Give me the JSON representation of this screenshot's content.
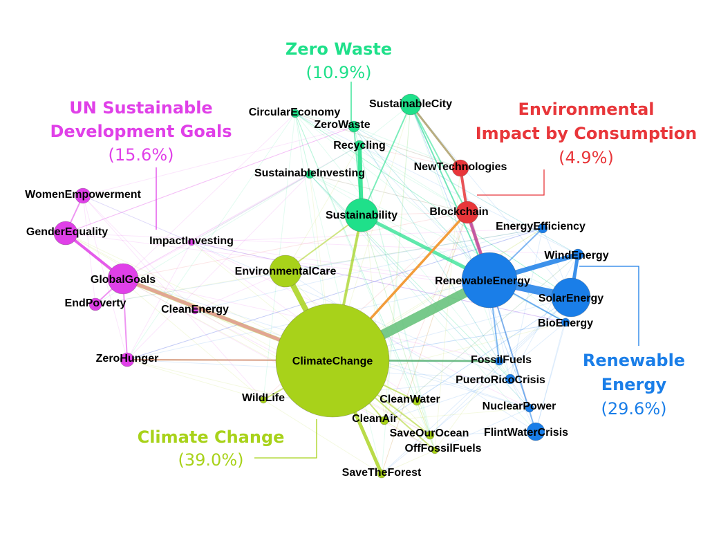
{
  "clusters": [
    {
      "id": "zero-waste",
      "title_lines": [
        "Zero Waste"
      ],
      "percent": "(10.9%)",
      "color": "#1fe08a"
    },
    {
      "id": "un-sdg",
      "title_lines": [
        "UN Sustainable",
        "Development Goals"
      ],
      "percent": "(15.6%)",
      "color": "#e040e8"
    },
    {
      "id": "env-impact",
      "title_lines": [
        "Environmental",
        "Impact by Consumption"
      ],
      "percent": "(4.9%)",
      "color": "#e8363a"
    },
    {
      "id": "renewable",
      "title_lines": [
        "Renewable",
        "Energy"
      ],
      "percent": "(29.6%)",
      "color": "#1a7ee8"
    },
    {
      "id": "climate",
      "title_lines": [
        "Climate Change"
      ],
      "percent": "(39.0%)",
      "color": "#a8d21a"
    }
  ],
  "nodes": [
    {
      "id": "ClimateChange",
      "label": "ClimateChange",
      "cluster": "climate"
    },
    {
      "id": "RenewableEnergy",
      "label": "RenewableEnergy",
      "cluster": "renewable"
    },
    {
      "id": "SolarEnergy",
      "label": "SolarEnergy",
      "cluster": "renewable"
    },
    {
      "id": "WindEnergy",
      "label": "WindEnergy",
      "cluster": "renewable"
    },
    {
      "id": "EnergyEfficiency",
      "label": "EnergyEfficiency",
      "cluster": "renewable"
    },
    {
      "id": "BioEnergy",
      "label": "BioEnergy",
      "cluster": "renewable"
    },
    {
      "id": "FossilFuels",
      "label": "FossilFuels",
      "cluster": "renewable"
    },
    {
      "id": "PuertoRicoCrisis",
      "label": "PuertoRicoCrisis",
      "cluster": "renewable"
    },
    {
      "id": "NuclearPower",
      "label": "NuclearPower",
      "cluster": "renewable"
    },
    {
      "id": "FlintWaterCrisis",
      "label": "FlintWaterCrisis",
      "cluster": "renewable"
    },
    {
      "id": "Sustainability",
      "label": "Sustainability",
      "cluster": "zero-waste"
    },
    {
      "id": "SustainableCity",
      "label": "SustainableCity",
      "cluster": "zero-waste"
    },
    {
      "id": "ZeroWaste",
      "label": "ZeroWaste",
      "cluster": "zero-waste"
    },
    {
      "id": "Recycling",
      "label": "Recycling",
      "cluster": "zero-waste"
    },
    {
      "id": "CircularEconomy",
      "label": "CircularEconomy",
      "cluster": "zero-waste"
    },
    {
      "id": "SustainableInvesting",
      "label": "SustainableInvesting",
      "cluster": "zero-waste"
    },
    {
      "id": "NewTechnologies",
      "label": "NewTechnologies",
      "cluster": "env-impact"
    },
    {
      "id": "Blockchain",
      "label": "Blockchain",
      "cluster": "env-impact"
    },
    {
      "id": "GlobalGoals",
      "label": "GlobalGoals",
      "cluster": "un-sdg"
    },
    {
      "id": "GenderEquality",
      "label": "GenderEquality",
      "cluster": "un-sdg"
    },
    {
      "id": "WomenEmpowerment",
      "label": "WomenEmpowerment",
      "cluster": "un-sdg"
    },
    {
      "id": "ImpactInvesting",
      "label": "ImpactInvesting",
      "cluster": "un-sdg"
    },
    {
      "id": "EndPoverty",
      "label": "EndPoverty",
      "cluster": "un-sdg"
    },
    {
      "id": "ZeroHunger",
      "label": "ZeroHunger",
      "cluster": "un-sdg"
    },
    {
      "id": "CleanEnergy",
      "label": "CleanEnergy",
      "cluster": "un-sdg"
    },
    {
      "id": "EnvironmentalCare",
      "label": "EnvironmentalCare",
      "cluster": "climate"
    },
    {
      "id": "WildLife",
      "label": "WildLife",
      "cluster": "climate"
    },
    {
      "id": "CleanWater",
      "label": "CleanWater",
      "cluster": "climate"
    },
    {
      "id": "CleanAir",
      "label": "CleanAir",
      "cluster": "climate"
    },
    {
      "id": "SaveOurOcean",
      "label": "SaveOurOcean",
      "cluster": "climate"
    },
    {
      "id": "OffFossilFuels",
      "label": "OffFossilFuels",
      "cluster": "climate"
    },
    {
      "id": "SaveTheForest",
      "label": "SaveTheForest",
      "cluster": "climate"
    }
  ],
  "edges": [
    [
      "ClimateChange",
      "RenewableEnergy"
    ],
    [
      "RenewableEnergy",
      "SolarEnergy"
    ],
    [
      "RenewableEnergy",
      "WindEnergy"
    ],
    [
      "ClimateChange",
      "EnvironmentalCare"
    ],
    [
      "ClimateChange",
      "Sustainability"
    ],
    [
      "ClimateChange",
      "GlobalGoals"
    ],
    [
      "ClimateChange",
      "SaveTheForest"
    ],
    [
      "ClimateChange",
      "Blockchain"
    ],
    [
      "Sustainability",
      "RenewableEnergy"
    ],
    [
      "Sustainability",
      "SustainableCity"
    ],
    [
      "Sustainability",
      "ZeroWaste"
    ],
    [
      "Sustainability",
      "Recycling"
    ],
    [
      "Blockchain",
      "NewTechnologies"
    ],
    [
      "Blockchain",
      "RenewableEnergy"
    ],
    [
      "GlobalGoals",
      "GenderEquality"
    ],
    [
      "GlobalGoals",
      "ZeroHunger"
    ],
    [
      "GlobalGoals",
      "EndPoverty"
    ],
    [
      "GenderEquality",
      "WomenEmpowerment"
    ],
    [
      "RenewableEnergy",
      "EnergyEfficiency"
    ],
    [
      "RenewableEnergy",
      "BioEnergy"
    ],
    [
      "RenewableEnergy",
      "FossilFuels"
    ],
    [
      "RenewableEnergy",
      "FlintWaterCrisis"
    ],
    [
      "ClimateChange",
      "FossilFuels"
    ],
    [
      "ClimateChange",
      "ZeroHunger"
    ],
    [
      "ClimateChange",
      "CleanWater"
    ],
    [
      "ClimateChange",
      "CleanAir"
    ],
    [
      "ClimateChange",
      "SaveOurOcean"
    ],
    [
      "ClimateChange",
      "OffFossilFuels"
    ],
    [
      "ClimateChange",
      "WildLife"
    ],
    [
      "SustainableCity",
      "Blockchain"
    ],
    [
      "SustainableCity",
      "RenewableEnergy"
    ],
    [
      "EnvironmentalCare",
      "Sustainability"
    ],
    [
      "SolarEnergy",
      "WindEnergy"
    ]
  ]
}
